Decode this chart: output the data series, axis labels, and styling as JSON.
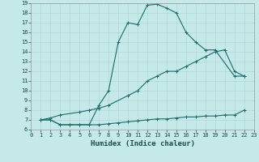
{
  "title": "",
  "xlabel": "Humidex (Indice chaleur)",
  "bg_color": "#c5e8e8",
  "grid_color": "#b0d8d8",
  "line_color": "#1a6b6b",
  "xlim": [
    0,
    23
  ],
  "ylim": [
    6,
    19
  ],
  "xticks": [
    0,
    1,
    2,
    3,
    4,
    5,
    6,
    7,
    8,
    9,
    10,
    11,
    12,
    13,
    14,
    15,
    16,
    17,
    18,
    19,
    20,
    21,
    22,
    23
  ],
  "yticks": [
    6,
    7,
    8,
    9,
    10,
    11,
    12,
    13,
    14,
    15,
    16,
    17,
    18,
    19
  ],
  "line1_x": [
    1,
    2,
    3,
    4,
    5,
    6,
    7,
    8,
    9,
    10,
    11,
    12,
    13,
    14,
    15,
    16,
    17,
    18,
    19,
    21,
    22
  ],
  "line1_y": [
    7,
    7,
    6.5,
    6.5,
    6.5,
    6.5,
    8.5,
    10,
    15,
    17,
    16.8,
    18.8,
    18.9,
    18.5,
    18,
    16,
    15,
    14.2,
    14.2,
    11.5,
    11.5
  ],
  "line2_x": [
    1,
    2,
    3,
    5,
    6,
    7,
    8,
    10,
    11,
    12,
    13,
    14,
    15,
    16,
    17,
    18,
    19,
    20,
    21,
    22
  ],
  "line2_y": [
    7,
    7.2,
    7.5,
    7.8,
    8.0,
    8.2,
    8.5,
    9.5,
    10,
    11,
    11.5,
    12,
    12,
    12.5,
    13,
    13.5,
    14,
    14.2,
    12,
    11.5
  ],
  "line3_x": [
    1,
    2,
    3,
    4,
    5,
    6,
    7,
    8,
    9,
    10,
    11,
    12,
    13,
    14,
    15,
    16,
    17,
    18,
    19,
    20,
    21,
    22
  ],
  "line3_y": [
    7,
    7,
    6.5,
    6.5,
    6.5,
    6.5,
    6.5,
    6.6,
    6.7,
    6.8,
    6.9,
    7.0,
    7.1,
    7.1,
    7.2,
    7.3,
    7.3,
    7.4,
    7.4,
    7.5,
    7.5,
    8.0
  ]
}
